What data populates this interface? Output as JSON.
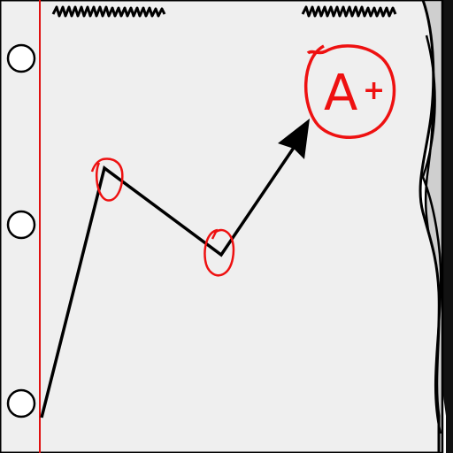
{
  "colors": {
    "paper": "#efefef",
    "paper_shadow": "#d9d9d9",
    "ink": "#000000",
    "margin_line": "#e01010",
    "grade_ink": "#ee1111",
    "hole_fill": "#ffffff"
  },
  "icons": {
    "holes": [
      "binder-hole-icon",
      "binder-hole-icon",
      "binder-hole-icon"
    ],
    "scribbles": [
      "scribble-icon",
      "scribble-icon"
    ],
    "path": "zigzag-line-icon",
    "arrow": "arrowhead-icon",
    "grade": "grade-circle-icon"
  },
  "grade": {
    "letter": "A",
    "modifier": "+"
  }
}
